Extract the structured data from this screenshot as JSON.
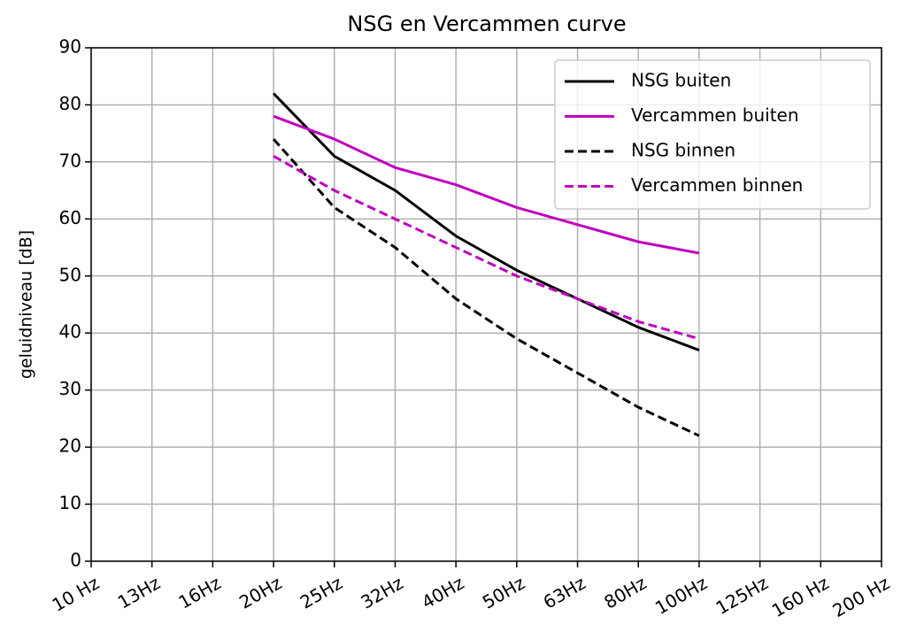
{
  "chart_data": {
    "type": "line",
    "title": "NSG en Vercammen curve",
    "y_label": "geluidniveau [dB]",
    "categories": [
      "10 Hz",
      "13Hz",
      "16Hz",
      "20Hz",
      "25Hz",
      "32Hz",
      "40Hz",
      "50Hz",
      "63Hz",
      "80Hz",
      "100Hz",
      "125Hz",
      "160 Hz",
      "200 Hz"
    ],
    "series": [
      {
        "name": "NSG buiten",
        "color": "#000000",
        "linestyle": "solid",
        "values": [
          null,
          null,
          null,
          82,
          71,
          65,
          57,
          51,
          46,
          41,
          37,
          null,
          null,
          null
        ]
      },
      {
        "name": "Vercammen buiten",
        "color": "#bf00bf",
        "linestyle": "solid",
        "values": [
          null,
          null,
          null,
          78,
          74,
          69,
          66,
          62,
          59,
          56,
          54,
          null,
          null,
          null
        ]
      },
      {
        "name": "NSG binnen",
        "color": "#000000",
        "linestyle": "dashed",
        "values": [
          null,
          null,
          null,
          74,
          62,
          55,
          46,
          39,
          33,
          27,
          22,
          null,
          null,
          null
        ]
      },
      {
        "name": "Vercammen binnen",
        "color": "#bf00bf",
        "linestyle": "dashed",
        "values": [
          null,
          null,
          null,
          71,
          65,
          60,
          55,
          50,
          46,
          42,
          39,
          null,
          null,
          null
        ]
      }
    ],
    "ylim": [
      0,
      90
    ],
    "yticks": [
      0,
      10,
      20,
      30,
      40,
      50,
      60,
      70,
      80,
      90
    ],
    "grid": true,
    "legend": "upper right"
  }
}
